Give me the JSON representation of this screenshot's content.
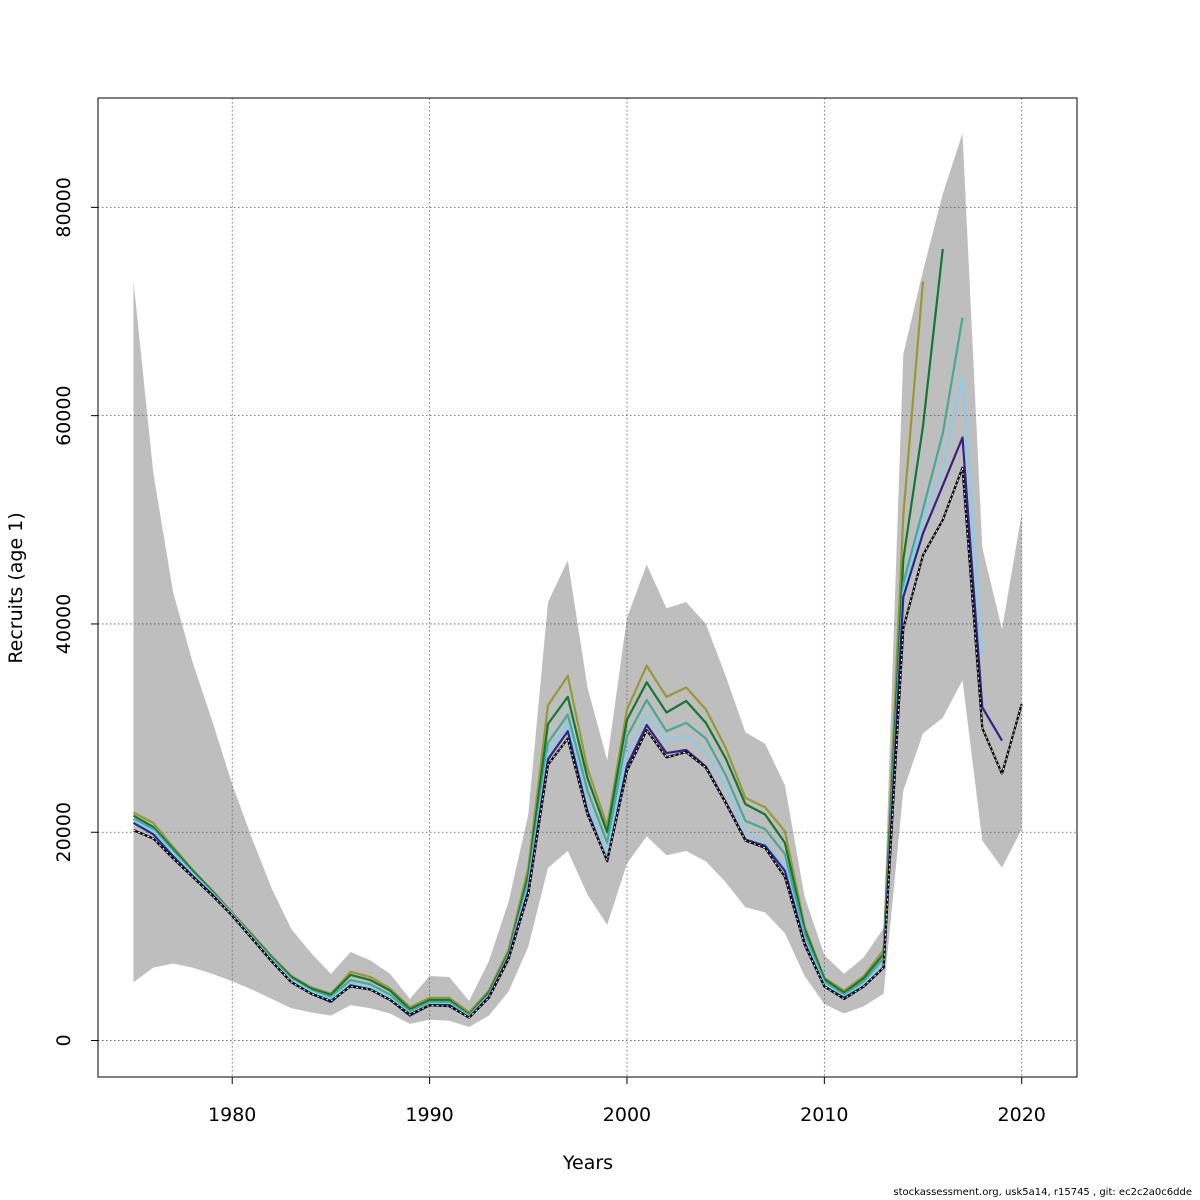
{
  "footer_text": "stockassessment.org, usk5a14, r15745 , git: ec2c2a0c6dde",
  "chart_data": {
    "type": "line",
    "xlabel": "Years",
    "ylabel": "Recruits (age 1)",
    "xlim": [
      1973.2,
      2022.8
    ],
    "ylim": [
      -3500,
      90500
    ],
    "x_ticks": [
      1980,
      1990,
      2000,
      2010,
      2020
    ],
    "y_ticks": [
      0,
      20000,
      40000,
      60000,
      80000
    ],
    "grid": true,
    "band": {
      "color": "#bebebe",
      "x": [
        1975,
        1976,
        1977,
        1978,
        1979,
        1980,
        1981,
        1982,
        1983,
        1984,
        1985,
        1986,
        1987,
        1988,
        1989,
        1990,
        1991,
        1992,
        1993,
        1994,
        1995,
        1996,
        1997,
        1998,
        1999,
        2000,
        2001,
        2002,
        2003,
        2004,
        2005,
        2006,
        2007,
        2008,
        2009,
        2010,
        2011,
        2012,
        2013,
        2014,
        2015,
        2016,
        2017,
        2018,
        2019,
        2020
      ],
      "lower": [
        5600,
        7000,
        7400,
        7000,
        6400,
        5700,
        4900,
        4000,
        3100,
        2700,
        2400,
        3400,
        3100,
        2600,
        1600,
        2000,
        1900,
        1300,
        2400,
        4700,
        9000,
        16600,
        18200,
        14000,
        11100,
        17000,
        19600,
        17800,
        18200,
        17200,
        15200,
        12800,
        12300,
        10300,
        6200,
        3500,
        2600,
        3300,
        4500,
        24000,
        29500,
        31000,
        34600,
        19200,
        16600,
        20300
      ],
      "upper": [
        72900,
        54500,
        43100,
        36300,
        30600,
        24600,
        19400,
        14600,
        10700,
        8400,
        6400,
        8500,
        7700,
        6400,
        4000,
        6200,
        6100,
        3800,
        7600,
        13300,
        21700,
        42100,
        46100,
        33900,
        26900,
        40600,
        45700,
        41500,
        42100,
        40000,
        35000,
        29600,
        28500,
        24500,
        13800,
        8200,
        6400,
        8000,
        10800,
        65900,
        73900,
        81300,
        87100,
        47300,
        39500,
        50600
      ]
    },
    "series": [
      {
        "color": "#000000",
        "dashed_overlay": true,
        "x": [
          1975,
          1976,
          1977,
          1978,
          1979,
          1980,
          1981,
          1982,
          1983,
          1984,
          1985,
          1986,
          1987,
          1988,
          1989,
          1990,
          1991,
          1992,
          1993,
          1994,
          1995,
          1996,
          1997,
          1998,
          1999,
          2000,
          2001,
          2002,
          2003,
          2004,
          2005,
          2006,
          2007,
          2008,
          2009,
          2010,
          2011,
          2012,
          2013,
          2014,
          2015,
          2016,
          2017,
          2018,
          2019,
          2020
        ],
        "values": [
          20200,
          19400,
          17500,
          15700,
          13900,
          12000,
          9800,
          7600,
          5600,
          4500,
          3800,
          5200,
          4900,
          3900,
          2500,
          3400,
          3300,
          2200,
          4100,
          7800,
          14100,
          26500,
          29000,
          21700,
          17300,
          25900,
          29800,
          27200,
          27700,
          26200,
          22800,
          19200,
          18500,
          15700,
          9200,
          5200,
          4000,
          5200,
          7000,
          39600,
          46600,
          50000,
          55000,
          30000,
          25600,
          32300
        ]
      },
      {
        "color": "#332288",
        "x": [
          1975,
          1976,
          1977,
          1978,
          1979,
          1980,
          1981,
          1982,
          1983,
          1984,
          1985,
          1986,
          1987,
          1988,
          1989,
          1990,
          1991,
          1992,
          1993,
          1994,
          1995,
          1996,
          1997,
          1998,
          1999,
          2000,
          2001,
          2002,
          2003,
          2004,
          2005,
          2006,
          2007,
          2008,
          2009,
          2010,
          2011,
          2012,
          2013,
          2014,
          2015,
          2016,
          2017,
          2018,
          2019
        ],
        "values": [
          20900,
          19800,
          17700,
          15800,
          14000,
          12000,
          9800,
          7600,
          5600,
          4500,
          3700,
          5300,
          4900,
          3900,
          2400,
          3400,
          3400,
          2200,
          4200,
          8000,
          14400,
          27000,
          29700,
          22000,
          17200,
          26400,
          30300,
          27600,
          27900,
          26300,
          22900,
          19300,
          18700,
          16300,
          9400,
          5200,
          4100,
          5200,
          7000,
          42600,
          48700,
          53300,
          57900,
          32000,
          28800
        ]
      },
      {
        "color": "#88ccee",
        "x": [
          1975,
          1976,
          1977,
          1978,
          1979,
          1980,
          1981,
          1982,
          1983,
          1984,
          1985,
          1986,
          1987,
          1988,
          1989,
          1990,
          1991,
          1992,
          1993,
          1994,
          1995,
          1996,
          1997,
          1998,
          1999,
          2000,
          2001,
          2002,
          2003,
          2004,
          2005,
          2006,
          2007,
          2008,
          2009,
          2010,
          2011,
          2012,
          2013,
          2014,
          2015,
          2016,
          2017,
          2018
        ],
        "values": [
          21100,
          20100,
          18000,
          16000,
          14100,
          12100,
          9900,
          7700,
          5800,
          4700,
          4000,
          5500,
          5100,
          4100,
          2600,
          3500,
          3500,
          2300,
          4300,
          8100,
          14800,
          27600,
          30400,
          22700,
          18000,
          27500,
          31300,
          28800,
          29300,
          27600,
          24400,
          20000,
          19000,
          16700,
          9700,
          5400,
          4200,
          5400,
          7400,
          43000,
          50000,
          55000,
          63800,
          37000
        ]
      },
      {
        "color": "#44aa99",
        "x": [
          1975,
          1976,
          1977,
          1978,
          1979,
          1980,
          1981,
          1982,
          1983,
          1984,
          1985,
          1986,
          1987,
          1988,
          1989,
          1990,
          1991,
          1992,
          1993,
          1994,
          1995,
          1996,
          1997,
          1998,
          1999,
          2000,
          2001,
          2002,
          2003,
          2004,
          2005,
          2006,
          2007,
          2008,
          2009,
          2010,
          2011,
          2012,
          2013,
          2014,
          2015,
          2016,
          2017
        ],
        "values": [
          21300,
          20300,
          18200,
          16100,
          14200,
          12200,
          10000,
          7900,
          5900,
          4800,
          4200,
          5800,
          5400,
          4400,
          2800,
          3700,
          3700,
          2400,
          4400,
          8200,
          15300,
          28600,
          31300,
          24000,
          19000,
          29200,
          32700,
          29700,
          30500,
          29000,
          25500,
          21100,
          20300,
          17900,
          10200,
          5600,
          4400,
          5700,
          7900,
          43900,
          51000,
          58300,
          69400
        ]
      },
      {
        "color": "#117733",
        "x": [
          1975,
          1976,
          1977,
          1978,
          1979,
          1980,
          1981,
          1982,
          1983,
          1984,
          1985,
          1986,
          1987,
          1988,
          1989,
          1990,
          1991,
          1992,
          1993,
          1994,
          1995,
          1996,
          1997,
          1998,
          1999,
          2000,
          2001,
          2002,
          2003,
          2004,
          2005,
          2006,
          2007,
          2008,
          2009,
          2010,
          2011,
          2012,
          2013,
          2014,
          2015,
          2016
        ],
        "values": [
          21600,
          20500,
          18400,
          16300,
          14300,
          12200,
          10100,
          8000,
          6100,
          5000,
          4400,
          6300,
          5800,
          4800,
          3000,
          3900,
          3900,
          2500,
          4600,
          8400,
          15900,
          30400,
          33000,
          25200,
          20000,
          30800,
          34400,
          31500,
          32600,
          30500,
          27100,
          22700,
          21700,
          19000,
          10700,
          5900,
          4600,
          6000,
          8300,
          46200,
          59000,
          76000
        ]
      },
      {
        "color": "#999933",
        "x": [
          1975,
          1976,
          1977,
          1978,
          1979,
          1980,
          1981,
          1982,
          1983,
          1984,
          1985,
          1986,
          1987,
          1988,
          1989,
          1990,
          1991,
          1992,
          1993,
          1994,
          1995,
          1996,
          1997,
          1998,
          1999,
          2000,
          2001,
          2002,
          2003,
          2004,
          2005,
          2006,
          2007,
          2008,
          2009,
          2010,
          2011,
          2012,
          2013,
          2014,
          2015
        ],
        "values": [
          21900,
          20900,
          18600,
          16400,
          14400,
          12300,
          10200,
          8100,
          6200,
          5100,
          4500,
          6600,
          6100,
          5000,
          3200,
          4100,
          4100,
          2700,
          4800,
          8700,
          16600,
          32200,
          35000,
          26100,
          20600,
          31800,
          36000,
          33000,
          33900,
          31800,
          28100,
          23300,
          22400,
          20100,
          11000,
          6000,
          4800,
          6200,
          8700,
          50400,
          72900
        ]
      }
    ]
  }
}
